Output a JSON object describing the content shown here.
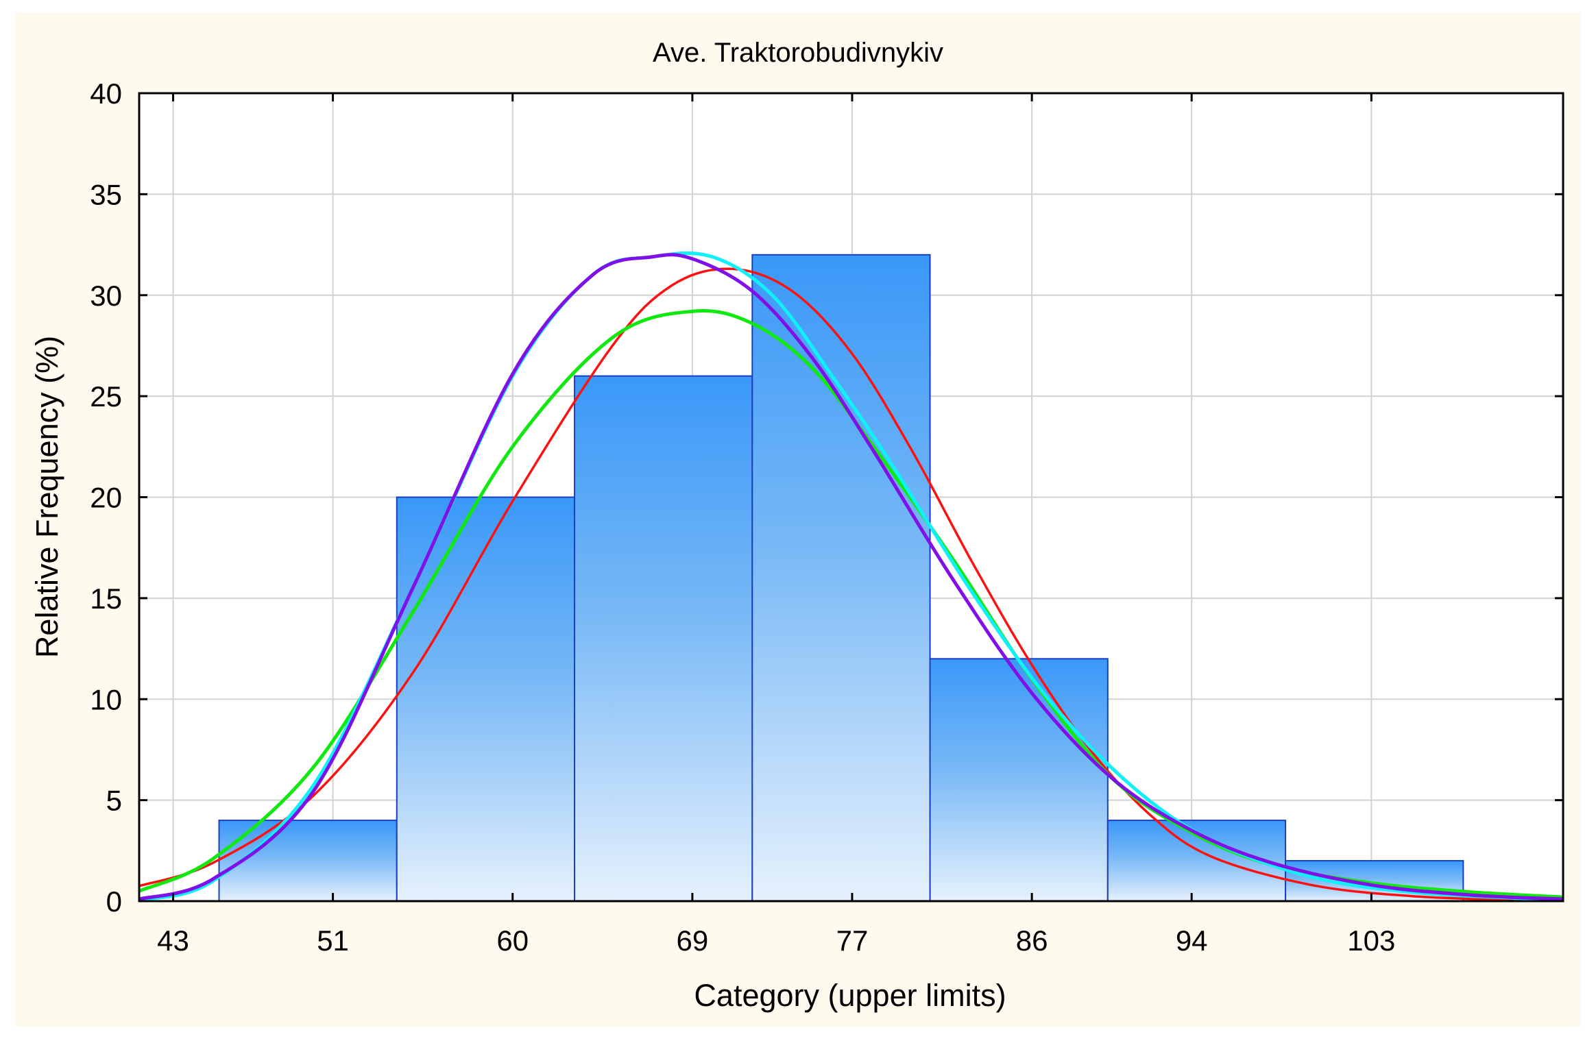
{
  "chart_data": {
    "type": "bar",
    "title": "Ave. Traktorobudivnykiv",
    "xlabel": "Category (upper limits)",
    "ylabel": "Relative Frequency (%)",
    "xlim": [
      41.3,
      112.6
    ],
    "ylim": [
      0,
      40
    ],
    "x_ticks": [
      43,
      51,
      60,
      69,
      77,
      86,
      94,
      103
    ],
    "x_tick_labels": [
      "43",
      "51",
      "60",
      "69",
      "77",
      "86",
      "94",
      "103"
    ],
    "y_ticks": [
      0,
      5,
      10,
      15,
      20,
      25,
      30,
      35,
      40
    ],
    "y_tick_labels": [
      "0",
      "5",
      "10",
      "15",
      "20",
      "25",
      "30",
      "35",
      "40"
    ],
    "grid": true,
    "bins": [
      {
        "from": 45.3,
        "to": 54.2,
        "value": 4
      },
      {
        "from": 54.2,
        "to": 63.1,
        "value": 20
      },
      {
        "from": 63.1,
        "to": 72.0,
        "value": 26
      },
      {
        "from": 72.0,
        "to": 80.9,
        "value": 32
      },
      {
        "from": 80.9,
        "to": 89.8,
        "value": 12
      },
      {
        "from": 89.8,
        "to": 98.7,
        "value": 4
      },
      {
        "from": 98.7,
        "to": 107.6,
        "value": 2
      }
    ],
    "curves": [
      {
        "name": "red",
        "color": "#ff1010",
        "points": [
          [
            41.3,
            0.75
          ],
          [
            45,
            1.9
          ],
          [
            50,
            5.2
          ],
          [
            55,
            11.3
          ],
          [
            60,
            19.8
          ],
          [
            65,
            27.5
          ],
          [
            68,
            30.5
          ],
          [
            71,
            31.3
          ],
          [
            74,
            30.2
          ],
          [
            77,
            27.1
          ],
          [
            80,
            22.3
          ],
          [
            83,
            16.8
          ],
          [
            86,
            11.7
          ],
          [
            89,
            7.4
          ],
          [
            92,
            4.2
          ],
          [
            95,
            2.2
          ],
          [
            100,
            0.8
          ],
          [
            105,
            0.25
          ],
          [
            110,
            0.06
          ],
          [
            112.6,
            0.02
          ]
        ]
      },
      {
        "name": "green",
        "color": "#10e810",
        "points": [
          [
            41.3,
            0.5
          ],
          [
            45,
            2.1
          ],
          [
            50,
            6.6
          ],
          [
            55,
            14.3
          ],
          [
            60,
            22.5
          ],
          [
            65,
            27.9
          ],
          [
            69,
            29.2
          ],
          [
            72,
            28.6
          ],
          [
            75,
            26.4
          ],
          [
            78,
            22.6
          ],
          [
            82,
            17.0
          ],
          [
            86,
            11.0
          ],
          [
            90,
            6.1
          ],
          [
            94,
            3.4
          ],
          [
            98,
            1.8
          ],
          [
            103,
            0.9
          ],
          [
            108,
            0.45
          ],
          [
            112.6,
            0.2
          ]
        ]
      },
      {
        "name": "cyan",
        "color": "#10f0f8",
        "points": [
          [
            41.3,
            0.05
          ],
          [
            45,
            1.0
          ],
          [
            50,
            5.7
          ],
          [
            55,
            15.5
          ],
          [
            60,
            26.0
          ],
          [
            64,
            31.0
          ],
          [
            67,
            31.9
          ],
          [
            70,
            31.9
          ],
          [
            73,
            30.0
          ],
          [
            76,
            26.0
          ],
          [
            79,
            21.6
          ],
          [
            83,
            15.3
          ],
          [
            87,
            9.8
          ],
          [
            91,
            5.7
          ],
          [
            95,
            3.0
          ],
          [
            100,
            1.2
          ],
          [
            105,
            0.45
          ],
          [
            110,
            0.16
          ],
          [
            112.6,
            0.08
          ]
        ]
      },
      {
        "name": "purple",
        "color": "#8010e8",
        "points": [
          [
            41.3,
            0.1
          ],
          [
            45,
            1.1
          ],
          [
            50,
            5.4
          ],
          [
            55,
            15.5
          ],
          [
            60,
            26.1
          ],
          [
            64,
            31.0
          ],
          [
            67,
            31.9
          ],
          [
            69,
            31.8
          ],
          [
            72,
            30.2
          ],
          [
            75,
            26.9
          ],
          [
            78,
            22.4
          ],
          [
            82,
            16.0
          ],
          [
            86,
            10.3
          ],
          [
            90,
            6.1
          ],
          [
            94,
            3.5
          ],
          [
            98,
            1.9
          ],
          [
            103,
            0.8
          ],
          [
            108,
            0.3
          ],
          [
            112.6,
            0.1
          ]
        ]
      }
    ]
  }
}
